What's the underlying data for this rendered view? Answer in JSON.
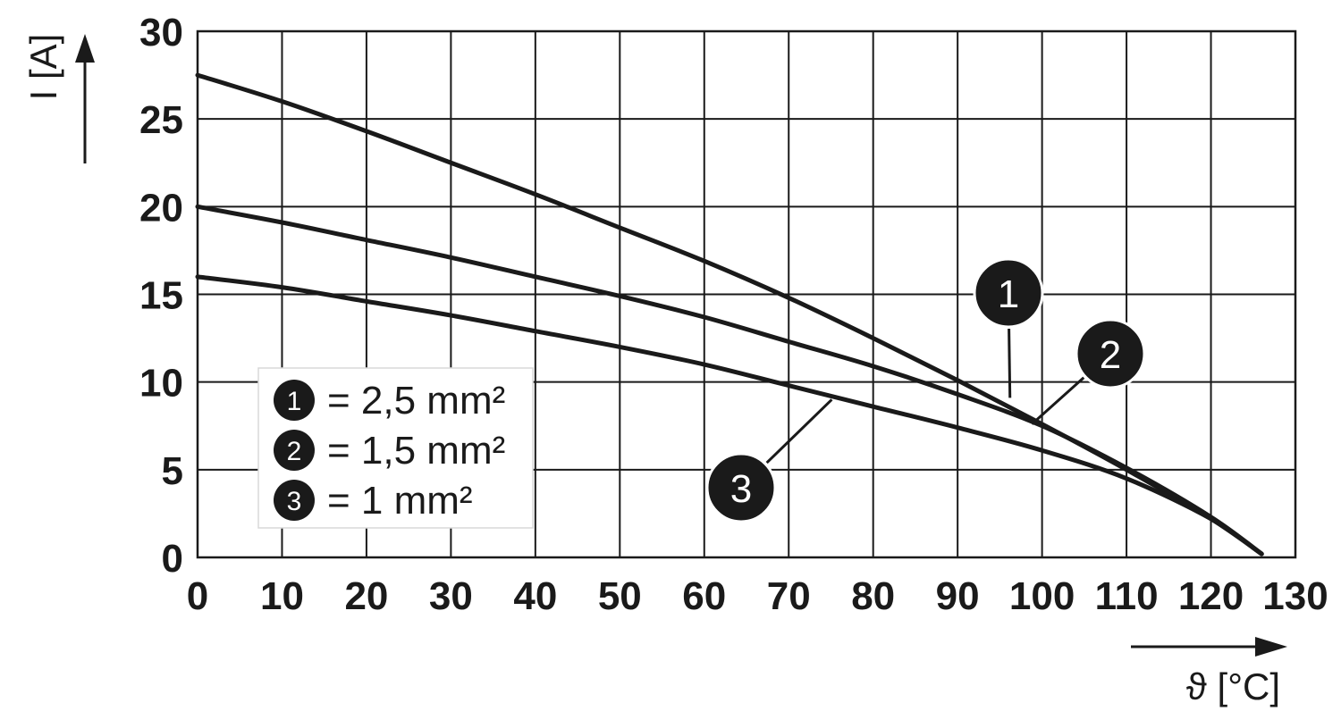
{
  "chart_data": {
    "type": "line",
    "x_axis": {
      "label": "ϑ [°C]",
      "min": 0,
      "max": 130,
      "ticks": [
        "0",
        "10",
        "20",
        "30",
        "40",
        "50",
        "60",
        "70",
        "80",
        "90",
        "100",
        "110",
        "120",
        "130"
      ]
    },
    "y_axis": {
      "label": "I [A]",
      "min": 0,
      "max": 30,
      "ticks": [
        "0",
        "5",
        "10",
        "15",
        "20",
        "25",
        "30"
      ]
    },
    "grid": true,
    "legend_position": "lower-left",
    "series": [
      {
        "marker": "1",
        "name": "= 2,5 mm²",
        "x": [
          0,
          10,
          20,
          30,
          40,
          50,
          60,
          70,
          80,
          90,
          100,
          110,
          120,
          126
        ],
        "y": [
          27.5,
          26.0,
          24.3,
          22.5,
          20.7,
          18.8,
          16.9,
          14.8,
          12.5,
          10.1,
          7.6,
          5.0,
          2.2,
          0.2
        ]
      },
      {
        "marker": "2",
        "name": "= 1,5 mm²",
        "x": [
          0,
          10,
          20,
          30,
          40,
          50,
          60,
          70,
          80,
          90,
          100,
          110,
          120,
          126
        ],
        "y": [
          20.0,
          19.1,
          18.1,
          17.1,
          16.0,
          14.9,
          13.7,
          12.3,
          10.9,
          9.3,
          7.5,
          5.1,
          2.3,
          0.2
        ]
      },
      {
        "marker": "3",
        "name": "= 1 mm²",
        "x": [
          0,
          10,
          20,
          30,
          40,
          50,
          60,
          70,
          80,
          90,
          100,
          110,
          120,
          126
        ],
        "y": [
          16.0,
          15.4,
          14.6,
          13.8,
          12.9,
          12.0,
          11.0,
          9.8,
          8.6,
          7.4,
          6.1,
          4.5,
          2.2,
          0.2
        ]
      }
    ],
    "callouts": [
      {
        "marker": "1",
        "x": 96.2,
        "y": 9.1
      },
      {
        "marker": "2",
        "x": 98.8,
        "y": 7.6
      },
      {
        "marker": "3",
        "x": 75.1,
        "y": 9.0
      }
    ]
  }
}
